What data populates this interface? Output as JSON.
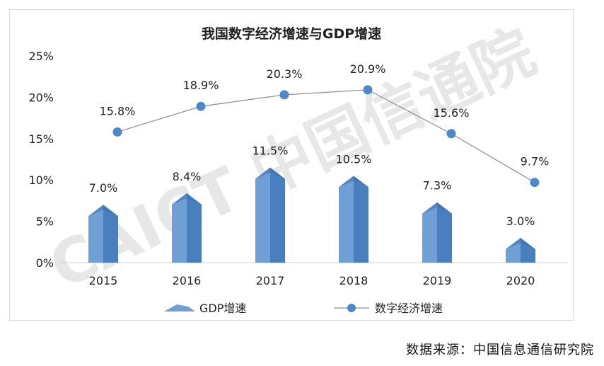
{
  "chart_data": {
    "type": "bar+line",
    "title": "我国数字经济增速与GDP增速",
    "categories": [
      "2015",
      "2016",
      "2017",
      "2018",
      "2019",
      "2020"
    ],
    "y_ticks": [
      "0%",
      "5%",
      "10%",
      "15%",
      "20%",
      "25%"
    ],
    "ylim": [
      0,
      25
    ],
    "series": [
      {
        "name": "GDP增速",
        "type": "bar",
        "values": [
          7.0,
          8.4,
          11.5,
          10.5,
          7.3,
          3.0
        ],
        "labels": [
          "7.0%",
          "8.4%",
          "11.5%",
          "10.5%",
          "7.3%",
          "3.0%"
        ]
      },
      {
        "name": "数字经济增速",
        "type": "line",
        "values": [
          15.8,
          18.9,
          20.3,
          20.9,
          15.6,
          9.7
        ],
        "labels": [
          "15.8%",
          "18.9%",
          "20.3%",
          "20.9%",
          "15.6%",
          "9.7%"
        ]
      }
    ],
    "legend": "bottom",
    "watermark": "CAICT 中国信通院"
  },
  "colors": {
    "bar_face": "#6f9fd4",
    "bar_side": "#4a7fbf",
    "bar_top": "#3d6fae",
    "line": "#8c8c8c",
    "marker": "#4f88c6",
    "watermark": "#e3e3e3"
  },
  "source": "数据来源：中国信息通信研究院"
}
